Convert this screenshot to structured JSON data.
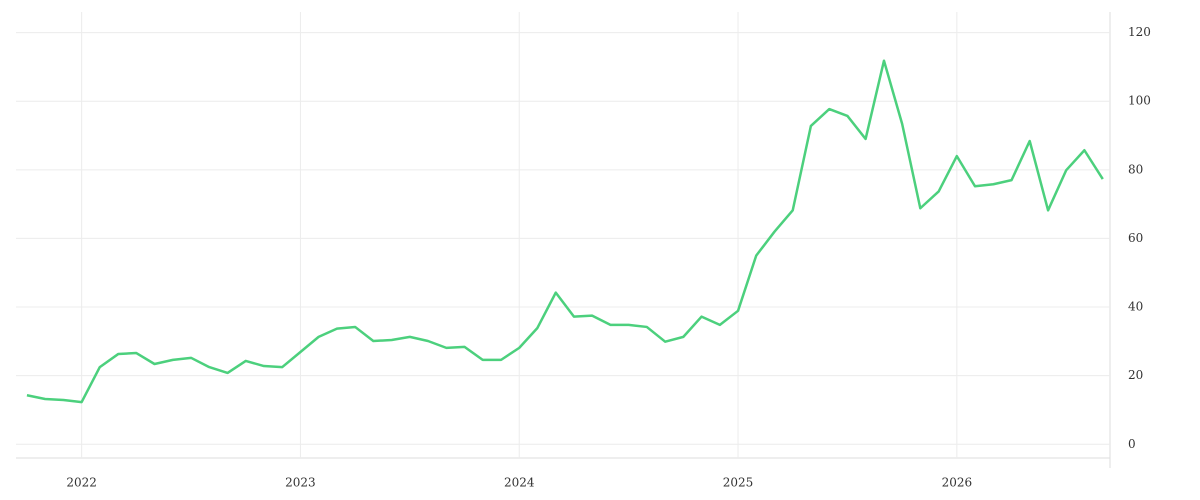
{
  "chart_data": {
    "type": "line",
    "x": [
      2021.75,
      2021.833,
      2021.917,
      2022.0,
      2022.083,
      2022.167,
      2022.25,
      2022.333,
      2022.417,
      2022.5,
      2022.583,
      2022.667,
      2022.75,
      2022.833,
      2022.917,
      2023.0,
      2023.083,
      2023.167,
      2023.25,
      2023.333,
      2023.417,
      2023.5,
      2023.583,
      2023.667,
      2023.75,
      2023.833,
      2023.917,
      2024.0,
      2024.083,
      2024.167,
      2024.25,
      2024.333,
      2024.417,
      2024.5,
      2024.583,
      2024.667,
      2024.75,
      2024.833,
      2024.917,
      2025.0,
      2025.083,
      2025.167,
      2025.25,
      2025.333,
      2025.417,
      2025.5,
      2025.583,
      2025.667,
      2025.75,
      2025.833,
      2025.917,
      2026.0,
      2026.083,
      2026.167,
      2026.25,
      2026.333,
      2026.417,
      2026.5,
      2026.583,
      2026.667
    ],
    "series": [
      {
        "color": "#4cd07d",
        "values": [
          14.3,
          13.2,
          12.9,
          12.3,
          22.5,
          26.3,
          26.6,
          23.4,
          24.6,
          25.2,
          22.5,
          20.8,
          24.3,
          22.8,
          22.5,
          26.9,
          31.3,
          33.7,
          34.2,
          30.1,
          30.4,
          31.3,
          30.1,
          28.1,
          28.4,
          24.6,
          24.6,
          28.1,
          33.9,
          44.2,
          37.2,
          37.5,
          34.8,
          34.8,
          34.2,
          29.9,
          31.3,
          37.2,
          34.8,
          38.9,
          55.0,
          62.0,
          68.2,
          92.8,
          97.7,
          95.7,
          89.0,
          111.8,
          93.4,
          68.8,
          73.7,
          84.0,
          75.2,
          75.8,
          77.0,
          88.4,
          68.2,
          79.9,
          85.7,
          77.3
        ]
      }
    ],
    "xlim": [
      2021.7,
      2026.7
    ],
    "xticks": [
      2022,
      2023,
      2024,
      2025,
      2026
    ],
    "ylim": [
      -4,
      126
    ],
    "yticks": [
      0,
      20,
      40,
      60,
      80,
      100,
      120
    ],
    "grid": true
  }
}
